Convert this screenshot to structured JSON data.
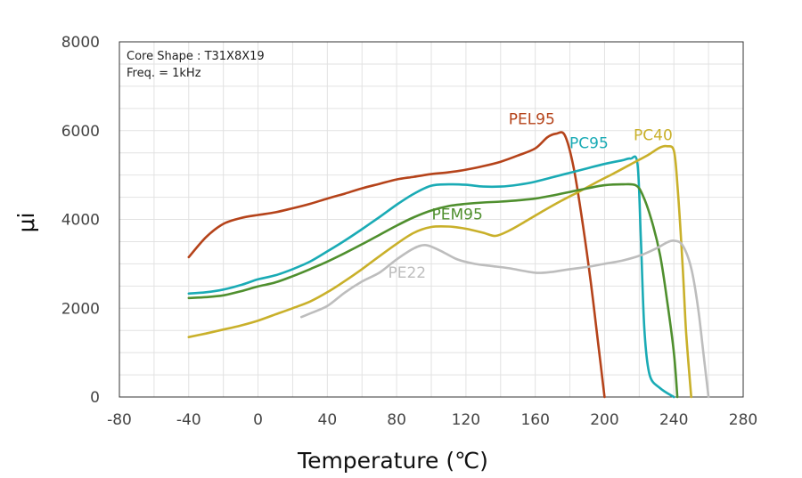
{
  "chart_data": {
    "type": "line",
    "title": "",
    "xlabel": "Temperature (℃)",
    "ylabel": "μi",
    "xlim": [
      -80,
      280
    ],
    "ylim": [
      0,
      8000
    ],
    "x_ticks": [
      "-80",
      "-40",
      "0",
      "40",
      "80",
      "120",
      "160",
      "200",
      "240",
      "280"
    ],
    "y_ticks": [
      "0",
      "2000",
      "4000",
      "6000",
      "8000"
    ],
    "x_tick_values": [
      -80,
      -40,
      0,
      40,
      80,
      120,
      160,
      200,
      240,
      280
    ],
    "y_tick_values": [
      0,
      2000,
      4000,
      6000,
      8000
    ],
    "grid": true,
    "annotations": [
      "Core Shape : T31X8X19",
      "Freq. = 1kHz"
    ],
    "series": [
      {
        "name": "PEL95",
        "color": "#b5431a",
        "points": [
          [
            -40,
            3150
          ],
          [
            -30,
            3600
          ],
          [
            -20,
            3900
          ],
          [
            -10,
            4030
          ],
          [
            0,
            4100
          ],
          [
            10,
            4160
          ],
          [
            20,
            4250
          ],
          [
            30,
            4350
          ],
          [
            40,
            4470
          ],
          [
            50,
            4580
          ],
          [
            60,
            4700
          ],
          [
            70,
            4800
          ],
          [
            80,
            4900
          ],
          [
            90,
            4960
          ],
          [
            100,
            5020
          ],
          [
            110,
            5060
          ],
          [
            120,
            5120
          ],
          [
            130,
            5200
          ],
          [
            140,
            5300
          ],
          [
            150,
            5440
          ],
          [
            160,
            5600
          ],
          [
            167,
            5850
          ],
          [
            172,
            5930
          ],
          [
            177,
            5900
          ],
          [
            182,
            5200
          ],
          [
            187,
            4000
          ],
          [
            192,
            2600
          ],
          [
            196,
            1300
          ],
          [
            200,
            0
          ]
        ]
      },
      {
        "name": "PC95",
        "color": "#1aabb5",
        "points": [
          [
            -40,
            2330
          ],
          [
            -30,
            2360
          ],
          [
            -20,
            2420
          ],
          [
            -10,
            2520
          ],
          [
            0,
            2650
          ],
          [
            10,
            2740
          ],
          [
            20,
            2880
          ],
          [
            30,
            3050
          ],
          [
            40,
            3280
          ],
          [
            50,
            3520
          ],
          [
            60,
            3780
          ],
          [
            70,
            4050
          ],
          [
            80,
            4330
          ],
          [
            90,
            4580
          ],
          [
            100,
            4760
          ],
          [
            110,
            4790
          ],
          [
            120,
            4780
          ],
          [
            130,
            4740
          ],
          [
            140,
            4740
          ],
          [
            150,
            4780
          ],
          [
            160,
            4850
          ],
          [
            170,
            4950
          ],
          [
            180,
            5050
          ],
          [
            190,
            5150
          ],
          [
            200,
            5250
          ],
          [
            210,
            5330
          ],
          [
            215,
            5370
          ],
          [
            219,
            5250
          ],
          [
            221,
            3500
          ],
          [
            223,
            1500
          ],
          [
            226,
            500
          ],
          [
            232,
            200
          ],
          [
            240,
            0
          ]
        ]
      },
      {
        "name": "PC40",
        "color": "#c9b02a",
        "points": [
          [
            -40,
            1350
          ],
          [
            -30,
            1430
          ],
          [
            -20,
            1520
          ],
          [
            -10,
            1610
          ],
          [
            0,
            1720
          ],
          [
            10,
            1860
          ],
          [
            20,
            2000
          ],
          [
            30,
            2150
          ],
          [
            40,
            2360
          ],
          [
            50,
            2610
          ],
          [
            60,
            2880
          ],
          [
            70,
            3170
          ],
          [
            80,
            3450
          ],
          [
            90,
            3700
          ],
          [
            100,
            3830
          ],
          [
            110,
            3840
          ],
          [
            120,
            3790
          ],
          [
            130,
            3700
          ],
          [
            137,
            3630
          ],
          [
            145,
            3750
          ],
          [
            155,
            3970
          ],
          [
            165,
            4200
          ],
          [
            175,
            4420
          ],
          [
            185,
            4620
          ],
          [
            195,
            4830
          ],
          [
            205,
            5030
          ],
          [
            215,
            5240
          ],
          [
            225,
            5450
          ],
          [
            232,
            5620
          ],
          [
            236,
            5650
          ],
          [
            240,
            5550
          ],
          [
            242,
            4800
          ],
          [
            245,
            3000
          ],
          [
            247,
            1500
          ],
          [
            250,
            0
          ]
        ]
      },
      {
        "name": "PEM95",
        "color": "#4f8f2e",
        "points": [
          [
            -40,
            2230
          ],
          [
            -30,
            2250
          ],
          [
            -20,
            2290
          ],
          [
            -10,
            2380
          ],
          [
            0,
            2490
          ],
          [
            10,
            2580
          ],
          [
            20,
            2720
          ],
          [
            30,
            2880
          ],
          [
            40,
            3050
          ],
          [
            50,
            3240
          ],
          [
            60,
            3440
          ],
          [
            70,
            3650
          ],
          [
            80,
            3860
          ],
          [
            90,
            4050
          ],
          [
            100,
            4200
          ],
          [
            110,
            4300
          ],
          [
            120,
            4350
          ],
          [
            130,
            4380
          ],
          [
            140,
            4400
          ],
          [
            150,
            4430
          ],
          [
            160,
            4470
          ],
          [
            170,
            4540
          ],
          [
            180,
            4620
          ],
          [
            190,
            4700
          ],
          [
            200,
            4770
          ],
          [
            210,
            4790
          ],
          [
            218,
            4770
          ],
          [
            222,
            4550
          ],
          [
            227,
            4000
          ],
          [
            232,
            3200
          ],
          [
            236,
            2200
          ],
          [
            240,
            1000
          ],
          [
            242,
            0
          ]
        ]
      },
      {
        "name": "PE22",
        "color": "#bdbdbd",
        "points": [
          [
            25,
            1800
          ],
          [
            30,
            1880
          ],
          [
            40,
            2050
          ],
          [
            50,
            2350
          ],
          [
            60,
            2600
          ],
          [
            70,
            2800
          ],
          [
            80,
            3100
          ],
          [
            90,
            3350
          ],
          [
            97,
            3420
          ],
          [
            105,
            3300
          ],
          [
            115,
            3100
          ],
          [
            125,
            3000
          ],
          [
            135,
            2950
          ],
          [
            145,
            2900
          ],
          [
            160,
            2800
          ],
          [
            170,
            2820
          ],
          [
            180,
            2880
          ],
          [
            190,
            2930
          ],
          [
            200,
            3000
          ],
          [
            210,
            3070
          ],
          [
            220,
            3180
          ],
          [
            230,
            3350
          ],
          [
            236,
            3480
          ],
          [
            240,
            3520
          ],
          [
            245,
            3420
          ],
          [
            250,
            2900
          ],
          [
            254,
            2000
          ],
          [
            257,
            1000
          ],
          [
            260,
            0
          ]
        ]
      }
    ]
  },
  "series_label_anchor": {
    "PEL95": [
      158,
      6150
    ],
    "PC95": [
      191,
      5600
    ],
    "PC40": [
      228,
      5780
    ],
    "PEM95": [
      115,
      4000
    ],
    "PE22": [
      86,
      2690
    ]
  }
}
